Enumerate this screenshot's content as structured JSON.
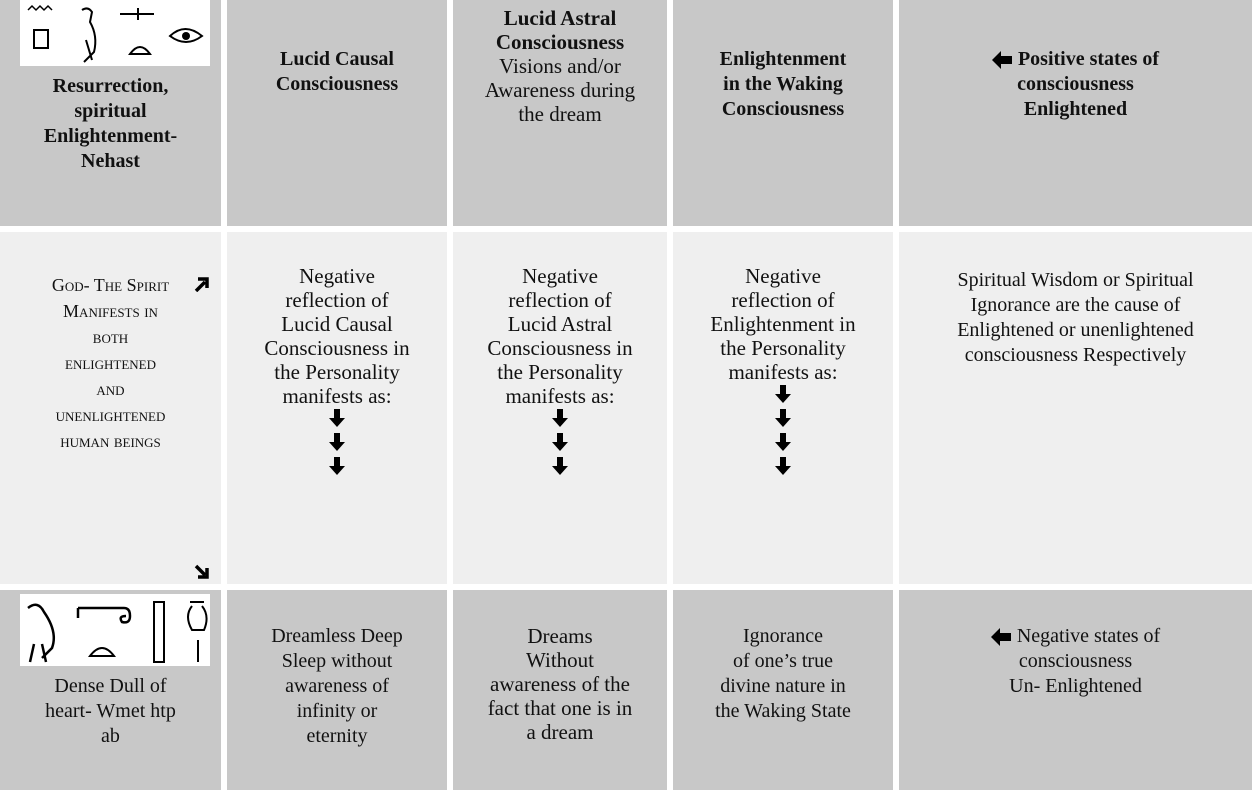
{
  "rows": [
    {
      "cells": [
        {
          "lines": [
            "Resurrection,",
            "spiritual",
            "Enlightenment-",
            "Nehast"
          ]
        },
        {
          "lines": [
            "Lucid Causal",
            "Consciousness"
          ]
        },
        {
          "lines": [
            "Lucid Astral",
            "Consciousness",
            "Visions and/or",
            "Awareness during",
            "the dream"
          ]
        },
        {
          "lines": [
            "Enlightenment",
            "in the Waking",
            "Consciousness"
          ]
        },
        {
          "lines": [
            "Positive states of",
            "consciousness",
            "Enlightened"
          ]
        }
      ]
    },
    {
      "cells": [
        {
          "lines": [
            "God- The Spirit",
            "Manifests in",
            "both",
            "enlightened",
            "and",
            "unenlightened",
            "human beings"
          ]
        },
        {
          "lines": [
            "Negative",
            "reflection of",
            "Lucid Causal",
            "Consciousness in",
            "the Personality",
            "manifests as:"
          ]
        },
        {
          "lines": [
            "Negative",
            "reflection of",
            "Lucid Astral",
            "Consciousness in",
            "the Personality",
            "manifests as:"
          ]
        },
        {
          "lines": [
            "Negative",
            "reflection of",
            "Enlightenment in",
            "the Personality",
            "manifests as:"
          ]
        },
        {
          "lines": [
            "Spiritual Wisdom or Spiritual",
            "Ignorance are the cause of",
            "Enlightened or unenlightened",
            "consciousness Respectively"
          ]
        }
      ]
    },
    {
      "cells": [
        {
          "lines": [
            "Dense Dull of",
            "heart- Wmet htp",
            "ab"
          ]
        },
        {
          "lines": [
            "Dreamless Deep",
            "Sleep without",
            "awareness of",
            "infinity or",
            "eternity"
          ]
        },
        {
          "lines": [
            "Dreams",
            "Without",
            "awareness of the",
            "fact that one is in",
            "a dream"
          ]
        },
        {
          "lines": [
            "Ignorance",
            "of one’s true",
            "divine nature in",
            "the Waking State"
          ]
        },
        {
          "lines": [
            "Negative states of",
            "consciousness",
            "Un- Enlightened"
          ]
        }
      ]
    }
  ]
}
